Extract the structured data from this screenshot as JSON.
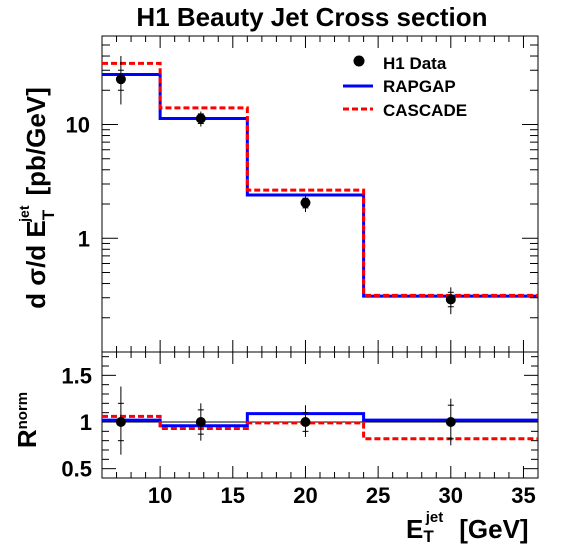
{
  "chart_data": {
    "type": "line",
    "title": "H1 Beauty Jet Cross section",
    "xlabel": {
      "main": "E",
      "sub": "T",
      "sup": "jet",
      "unit": "[GeV]"
    },
    "xlim": [
      6,
      36
    ],
    "xticks": [
      "10",
      "15",
      "20",
      "25",
      "30",
      "35"
    ],
    "bins": [
      6,
      10,
      16,
      24,
      36
    ],
    "top_panel": {
      "ylabel": {
        "main": "d σ/d E",
        "sub": "T",
        "sup": "jet",
        "unit": "[pb/GeV]"
      },
      "ylim": [
        0.1,
        60
      ],
      "log_scale": true,
      "yticks": [
        "10",
        "1"
      ],
      "legend": {
        "position": "top-right",
        "entries": [
          "H1 Data",
          "RAPGAP",
          "CASCADE"
        ]
      },
      "series": [
        {
          "name": "H1 Data",
          "kind": "points",
          "color": "#000000",
          "x": [
            7.3,
            12.8,
            20.0,
            30.0
          ],
          "y": [
            25.0,
            11.3,
            2.05,
            0.29
          ],
          "err_total": [
            [
              15.0,
              40.0
            ],
            [
              9.6,
              13.0
            ],
            [
              1.7,
              2.4
            ],
            [
              0.215,
              0.37
            ]
          ],
          "err_stat": [
            [
              20.0,
              30.0
            ],
            [
              10.2,
              12.4
            ],
            [
              1.85,
              2.25
            ],
            [
              0.25,
              0.335
            ]
          ]
        },
        {
          "name": "RAPGAP",
          "kind": "step",
          "color": "#0000ff",
          "values": [
            27.5,
            11.3,
            2.4,
            0.31
          ]
        },
        {
          "name": "CASCADE",
          "kind": "step",
          "color": "#ff0000",
          "values": [
            34.5,
            14.0,
            2.65,
            0.315
          ]
        }
      ]
    },
    "bottom_panel": {
      "ylabel": {
        "main": "R",
        "sup": "norm"
      },
      "ylim": [
        0.4,
        1.75
      ],
      "yticks": [
        "0.5",
        "1",
        "1.5"
      ],
      "series": [
        {
          "name": "H1 Data",
          "kind": "points",
          "color": "#000000",
          "x": [
            7.3,
            12.8,
            20.0,
            30.0
          ],
          "y": [
            1.0,
            1.0,
            1.0,
            1.0
          ],
          "err_total": [
            [
              0.65,
              1.38
            ],
            [
              0.8,
              1.2
            ],
            [
              0.84,
              1.18
            ],
            [
              0.75,
              1.25
            ]
          ],
          "err_stat": [
            [
              0.8,
              1.2
            ],
            [
              0.87,
              1.13
            ],
            [
              0.9,
              1.1
            ],
            [
              0.82,
              1.18
            ]
          ]
        },
        {
          "name": "RAPGAP",
          "kind": "step",
          "color": "#0000ff",
          "values": [
            1.02,
            0.96,
            1.09,
            1.02
          ]
        },
        {
          "name": "CASCADE",
          "kind": "step",
          "color": "#ff0000",
          "values": [
            1.06,
            0.93,
            0.99,
            0.82
          ]
        }
      ]
    }
  }
}
